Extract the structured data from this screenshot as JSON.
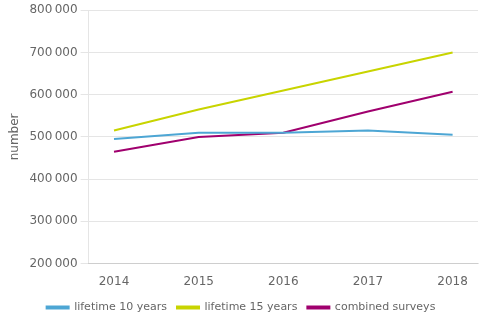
{
  "chart_data": {
    "type": "line",
    "x": [
      2014,
      2015,
      2016,
      2017,
      2018
    ],
    "series": [
      {
        "name": "lifetime 10 years",
        "color": "#4da6d4",
        "values": [
          495000,
          510000,
          510000,
          515000,
          505000
        ]
      },
      {
        "name": "lifetime 15 years",
        "color": "#c8d400",
        "values": [
          515000,
          565000,
          610000,
          655000,
          700000
        ]
      },
      {
        "name": "combined surveys",
        "color": "#a0006e",
        "values": [
          465000,
          500000,
          510000,
          560000,
          607000
        ]
      }
    ],
    "y_label": "number",
    "xlim": [
      2013.7,
      2018.3
    ],
    "xticks": [
      2014,
      2015,
      2016,
      2017,
      2018
    ],
    "ylim": [
      200000,
      800000
    ],
    "yticks": [
      {
        "value": 200000,
        "label": "200 000"
      },
      {
        "value": 300000,
        "label": "300 000"
      },
      {
        "value": 400000,
        "label": "400 000"
      },
      {
        "value": 500000,
        "label": "500 000"
      },
      {
        "value": 600000,
        "label": "600 000"
      },
      {
        "value": 700000,
        "label": "700 000"
      },
      {
        "value": 800000,
        "label": "800 000"
      }
    ],
    "grid": true,
    "legend": "bottom"
  }
}
